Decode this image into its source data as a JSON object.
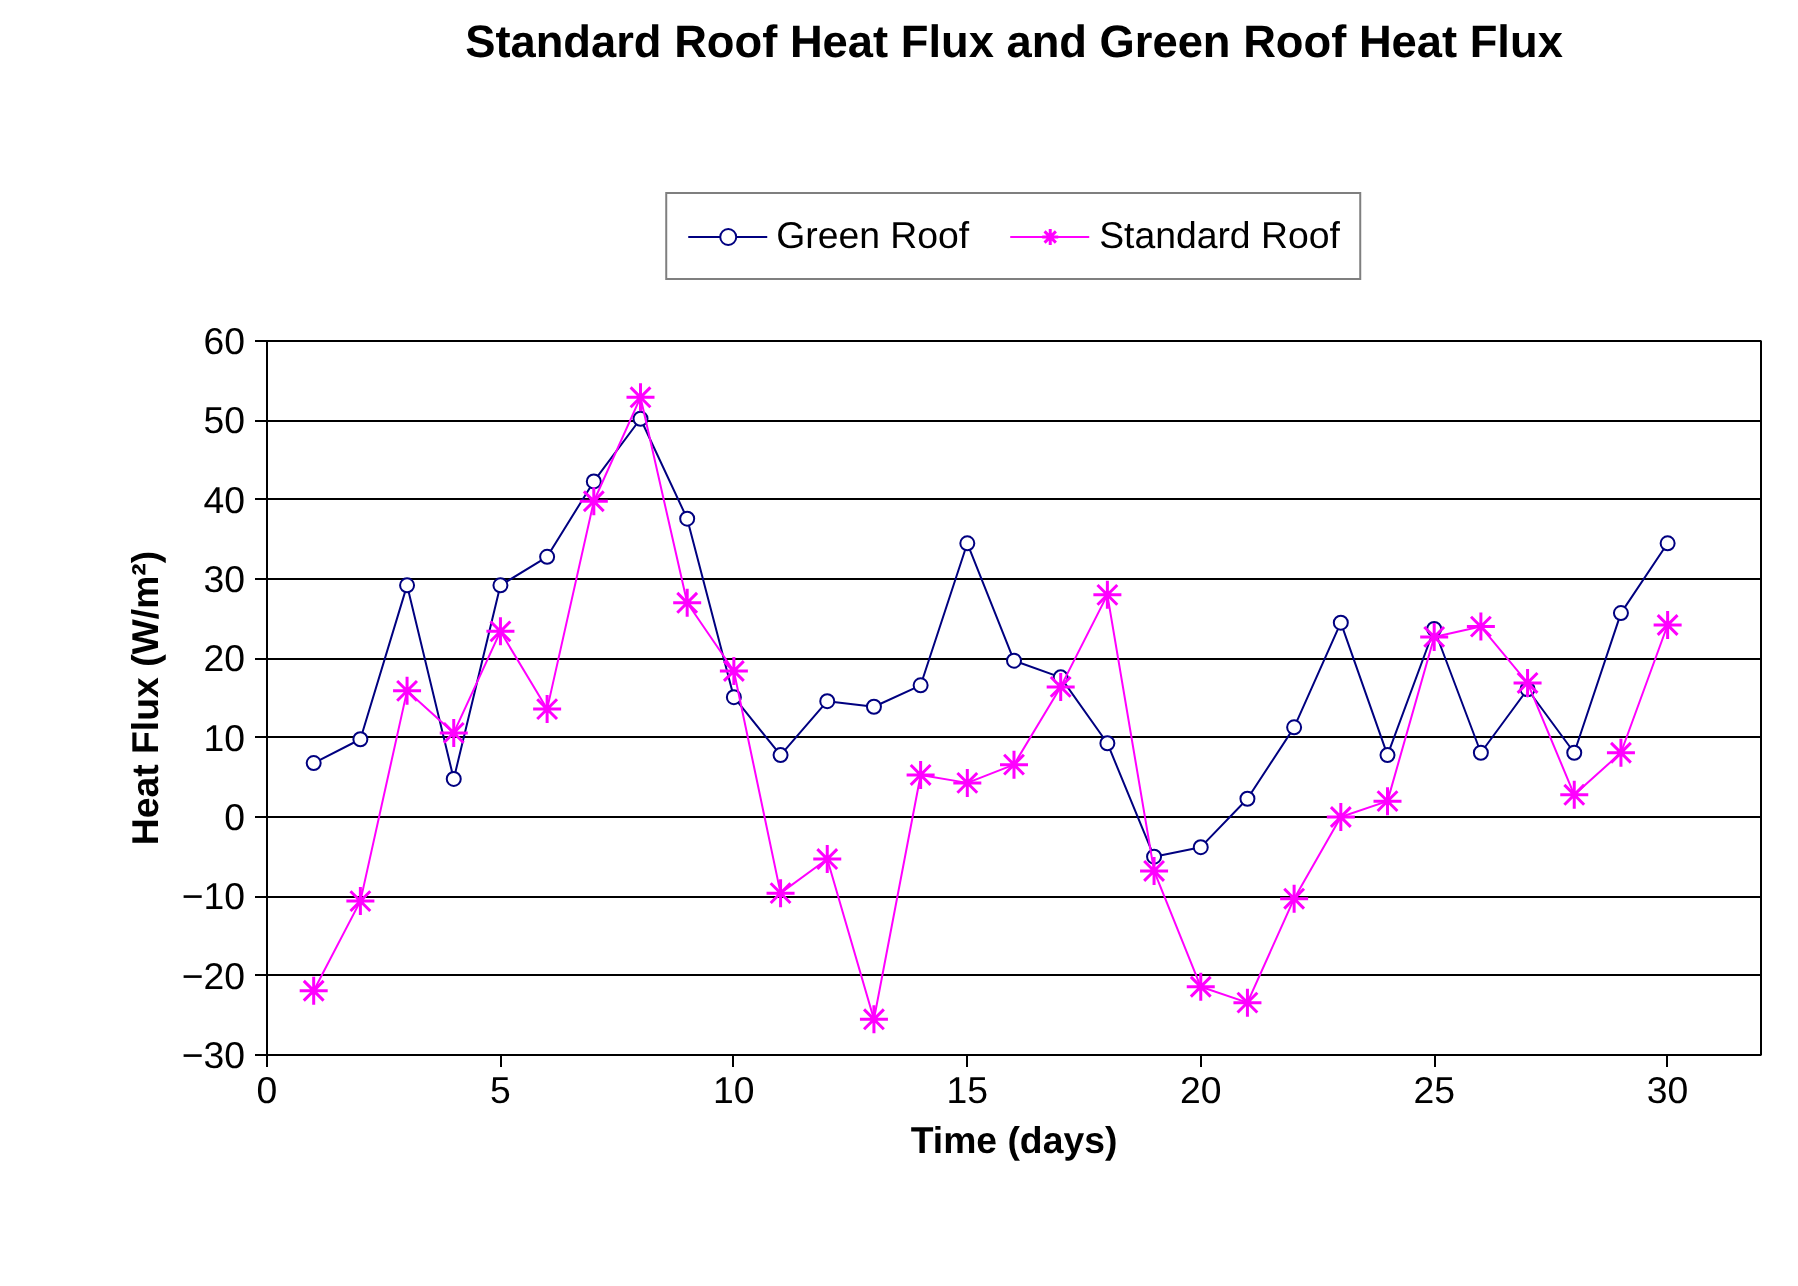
{
  "chart_data": {
    "type": "line",
    "title": "Standard Roof Heat Flux and Green Roof Heat Flux",
    "xlabel": "Time (days)",
    "ylabel": "Heat Flux (W/m²)",
    "x": [
      1,
      2,
      3,
      4,
      5,
      6,
      7,
      8,
      9,
      10,
      11,
      12,
      13,
      14,
      15,
      16,
      17,
      18,
      19,
      20,
      21,
      22,
      23,
      24,
      25,
      26,
      27,
      28,
      29,
      30
    ],
    "series": [
      {
        "name": "Green Roof",
        "color": "#000080",
        "marker": "circle",
        "values": [
          6.8,
          9.8,
          29.2,
          4.8,
          29.2,
          32.8,
          42.3,
          50.2,
          37.6,
          15.1,
          7.8,
          14.6,
          13.9,
          16.6,
          34.5,
          19.7,
          17.6,
          9.3,
          -5.0,
          -3.8,
          2.3,
          11.3,
          24.5,
          7.8,
          23.7,
          8.1,
          16.1,
          8.1,
          25.7,
          34.5
        ]
      },
      {
        "name": "Standard Roof",
        "color": "#ff00ff",
        "marker": "cross",
        "values": [
          -21.9,
          -10.6,
          15.9,
          10.6,
          23.4,
          13.6,
          39.8,
          52.9,
          27.0,
          18.4,
          -9.6,
          -5.3,
          -25.5,
          5.3,
          4.3,
          6.6,
          16.4,
          28.0,
          -6.8,
          -21.4,
          -23.4,
          -10.3,
          0.0,
          2.0,
          22.7,
          24.0,
          16.9,
          2.8,
          8.1,
          24.2
        ]
      }
    ],
    "xlim": [
      0,
      32
    ],
    "xticks": [
      0,
      5,
      10,
      15,
      20,
      25,
      30
    ],
    "ylim": [
      -30,
      60
    ],
    "yticks": [
      -30,
      -20,
      -10,
      0,
      10,
      20,
      30,
      40,
      50,
      60
    ],
    "grid": "y",
    "legend": "top",
    "line_style": "solid"
  }
}
